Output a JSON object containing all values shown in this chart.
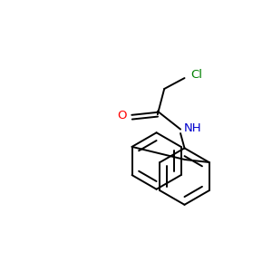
{
  "background_color": "#ffffff",
  "atom_colors": {
    "C": "#000000",
    "N": "#0000cd",
    "O": "#ff0000",
    "Cl": "#008000",
    "H": "#000000"
  },
  "bond_color": "#000000",
  "bond_width": 1.4,
  "font_size_atoms": 9.5
}
